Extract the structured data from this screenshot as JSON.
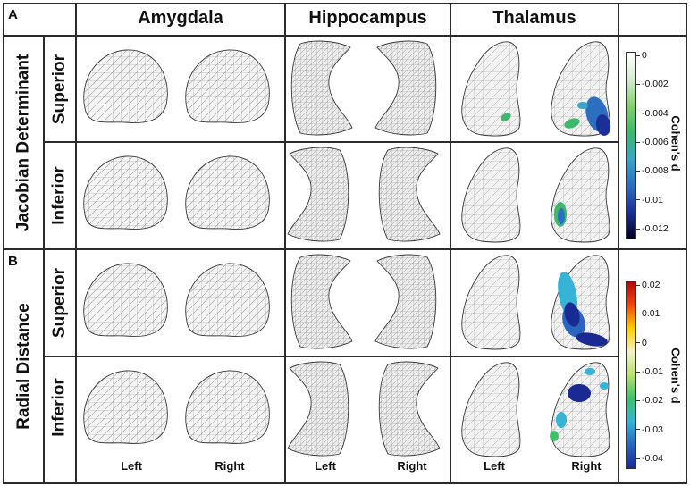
{
  "panels": {
    "a": "A",
    "b": "B"
  },
  "columns": {
    "amygdala": "Amygdala",
    "hippocampus": "Hippocampus",
    "thalamus": "Thalamus"
  },
  "rows": {
    "jacobian": "Jacobian Determinant",
    "radial": "Radial Distance",
    "superior": "Superior",
    "inferior": "Inferior"
  },
  "sides": {
    "left": "Left",
    "right": "Right"
  },
  "colorbar_jacobian": {
    "title": "Cohen's d",
    "ticks": [
      "0",
      "-0.002",
      "-0.004",
      "-0.006",
      "-0.008",
      "-0.01",
      "-0.012"
    ],
    "colors": [
      "#ffffff",
      "#d5ecd2",
      "#86cf6e",
      "#3db86c",
      "#3aa5c6",
      "#2c6fc0",
      "#1c2f98",
      "#000022"
    ]
  },
  "colorbar_radial": {
    "title": "Cohen's d",
    "ticks": [
      "0.02",
      "0.01",
      "0",
      "-0.01",
      "-0.02",
      "-0.03",
      "-0.04"
    ],
    "colors": [
      "#b40a0a",
      "#f04a10",
      "#ffcf00",
      "#f2f2c8",
      "#b8e070",
      "#3fbf6a",
      "#37b3d6",
      "#2a65c0",
      "#1a2a92"
    ]
  },
  "significance_color": {
    "jacobian": "#2f7ec8",
    "radial": "#2b68c2"
  }
}
